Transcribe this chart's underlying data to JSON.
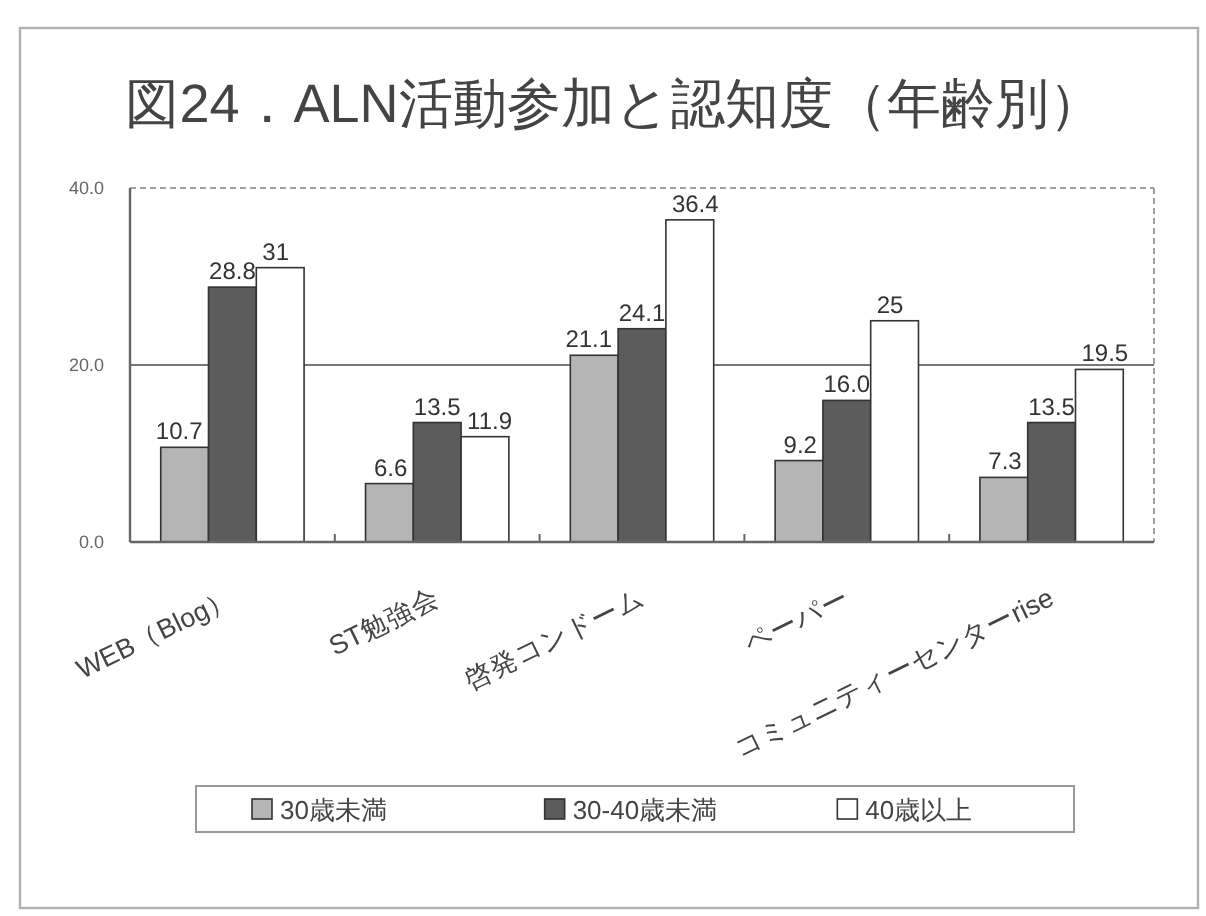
{
  "chart_data": {
    "type": "bar",
    "title": "図24．ALN活動参加と認知度（年齢別）",
    "categories": [
      "WEB（Blog）",
      "ST勉強会",
      "啓発コンドーム",
      "ペーパー",
      "コミュニティーセンターrise"
    ],
    "series": [
      {
        "name": "30歳未満",
        "color": "#b5b5b5",
        "values": [
          10.7,
          6.6,
          21.1,
          9.2,
          7.3
        ],
        "value_labels": [
          "10.7",
          "6.6",
          "21.1",
          "9.2",
          "7.3"
        ]
      },
      {
        "name": "30-40歳未満",
        "color": "#5c5c5c",
        "values": [
          28.8,
          13.5,
          24.1,
          16.0,
          13.5
        ],
        "value_labels": [
          "28.8",
          "13.5",
          "24.1",
          "16.0",
          "13.5"
        ]
      },
      {
        "name": "40歳以上",
        "color": "#ffffff",
        "values": [
          31,
          11.9,
          36.4,
          25,
          19.5
        ],
        "value_labels": [
          "31",
          "11.9",
          "36.4",
          "25",
          "19.5"
        ]
      }
    ],
    "ylim": [
      0,
      40
    ],
    "yticks": [
      {
        "value": 0,
        "label": "0.0"
      },
      {
        "value": 20,
        "label": "20.0"
      },
      {
        "value": 40,
        "label": "40.0"
      }
    ],
    "grid": "y",
    "legend": "bottom"
  }
}
